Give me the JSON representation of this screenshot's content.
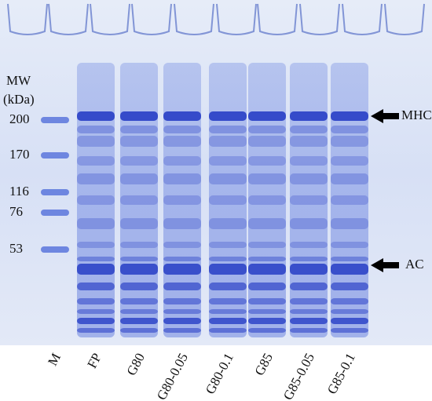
{
  "mw_label": {
    "line1": "MW",
    "line2": "(kDa)"
  },
  "markers": [
    200,
    170,
    116,
    76,
    53
  ],
  "lanes": [
    "M",
    "FP",
    "G80",
    "G80-0.05",
    "G80-0.1",
    "G85",
    "G85-0.05",
    "G85-0.1"
  ],
  "annotations": [
    "MHC",
    "AC"
  ]
}
